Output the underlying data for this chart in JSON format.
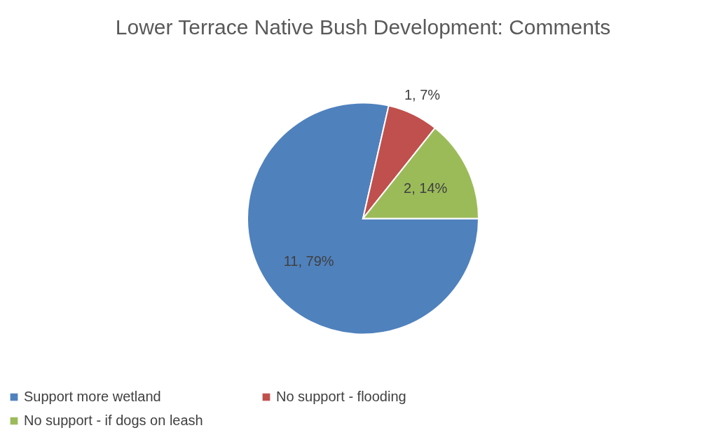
{
  "chart_data": {
    "type": "pie",
    "title": "Lower Terrace Native Bush Development: Comments",
    "categories": [
      "Support more wetland",
      "No support - flooding",
      "No support - if dogs on leash"
    ],
    "values": [
      11,
      1,
      2
    ],
    "colors": [
      "#4f81bd",
      "#c0504d",
      "#9bbb59"
    ],
    "value_labels": [
      "11, 79%",
      "1, 7%",
      "2, 14%"
    ],
    "legend": "bottom"
  }
}
